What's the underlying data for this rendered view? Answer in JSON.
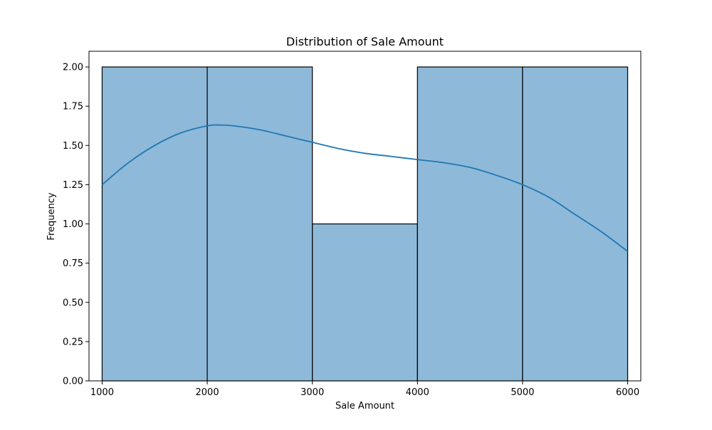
{
  "chart_data": {
    "type": "histogram",
    "title": "Distribution of Sale Amount",
    "xlabel": "Sale Amount",
    "ylabel": "Frequency",
    "bins": [
      {
        "start": 1000,
        "end": 2000,
        "count": 2
      },
      {
        "start": 2000,
        "end": 3000,
        "count": 2
      },
      {
        "start": 3000,
        "end": 4000,
        "count": 1
      },
      {
        "start": 4000,
        "end": 5000,
        "count": 2
      },
      {
        "start": 5000,
        "end": 6000,
        "count": 2
      }
    ],
    "kde": {
      "x": [
        1000,
        1250,
        1500,
        1750,
        2000,
        2125,
        2250,
        2500,
        2750,
        3000,
        3250,
        3500,
        3750,
        4000,
        4250,
        4500,
        4750,
        5000,
        5250,
        5500,
        5750,
        6000
      ],
      "y": [
        1.25,
        1.39,
        1.5,
        1.58,
        1.625,
        1.63,
        1.625,
        1.6,
        1.56,
        1.52,
        1.48,
        1.45,
        1.43,
        1.41,
        1.39,
        1.36,
        1.31,
        1.25,
        1.17,
        1.06,
        0.95,
        0.825
      ]
    },
    "xlim": [
      875,
      6125
    ],
    "ylim": [
      0,
      2.1
    ],
    "xticks": [
      1000,
      2000,
      3000,
      4000,
      5000,
      6000
    ],
    "yticks": [
      0.0,
      0.25,
      0.5,
      0.75,
      1.0,
      1.25,
      1.5,
      1.75,
      2.0
    ],
    "xtick_labels": [
      "1000",
      "2000",
      "3000",
      "4000",
      "5000",
      "6000"
    ],
    "ytick_labels": [
      "0.00",
      "0.25",
      "0.50",
      "0.75",
      "1.00",
      "1.25",
      "1.50",
      "1.75",
      "2.00"
    ],
    "grid": false,
    "colors": {
      "bar_fill": "#8eb9d9",
      "bar_edge": "#000000",
      "kde_line": "#1f77b4"
    }
  }
}
